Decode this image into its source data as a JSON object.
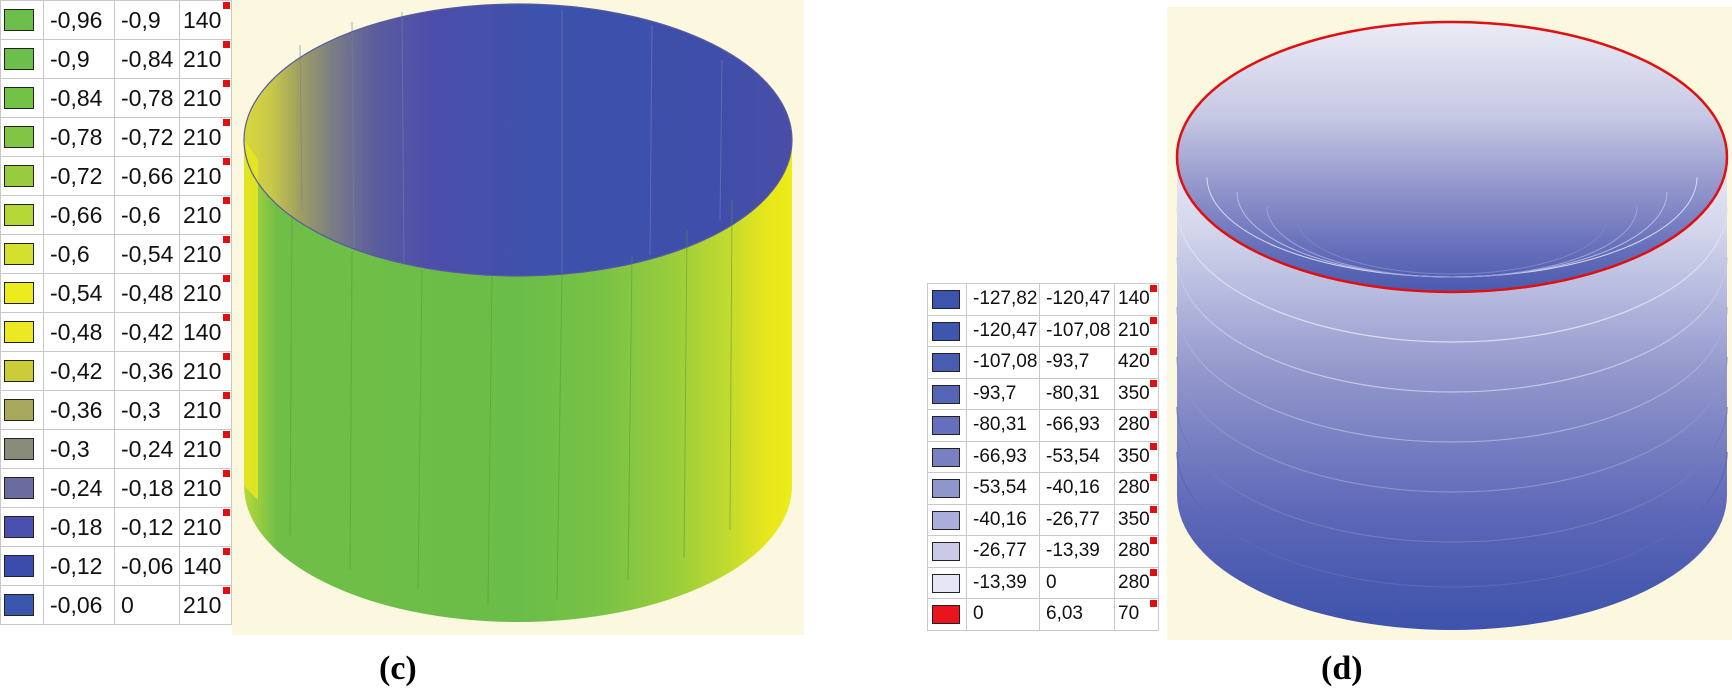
{
  "panel_c": {
    "caption": "(c)",
    "legend": [
      {
        "color": "#6cbf4a",
        "from": "-0,96",
        "to": "-0,9",
        "count": "140"
      },
      {
        "color": "#6cbf4a",
        "from": "-0,9",
        "to": "-0,84",
        "count": "210"
      },
      {
        "color": "#72c245",
        "from": "-0,84",
        "to": "-0,78",
        "count": "210"
      },
      {
        "color": "#80c644",
        "from": "-0,78",
        "to": "-0,72",
        "count": "210"
      },
      {
        "color": "#98cc3e",
        "from": "-0,72",
        "to": "-0,66",
        "count": "210"
      },
      {
        "color": "#b4d636",
        "from": "-0,66",
        "to": "-0,6",
        "count": "210"
      },
      {
        "color": "#d4e02e",
        "from": "-0,6",
        "to": "-0,54",
        "count": "210"
      },
      {
        "color": "#ecec1c",
        "from": "-0,54",
        "to": "-0,48",
        "count": "210"
      },
      {
        "color": "#ece822",
        "from": "-0,48",
        "to": "-0,42",
        "count": "140"
      },
      {
        "color": "#cccc38",
        "from": "-0,42",
        "to": "-0,36",
        "count": "210"
      },
      {
        "color": "#a8a85c",
        "from": "-0,36",
        "to": "-0,3",
        "count": "210"
      },
      {
        "color": "#888c78",
        "from": "-0,3",
        "to": "-0,24",
        "count": "210"
      },
      {
        "color": "#6a6ca0",
        "from": "-0,24",
        "to": "-0,18",
        "count": "210"
      },
      {
        "color": "#4a50b0",
        "from": "-0,18",
        "to": "-0,12",
        "count": "210"
      },
      {
        "color": "#3c4cae",
        "from": "-0,12",
        "to": "-0,06",
        "count": "140"
      },
      {
        "color": "#3a56ae",
        "from": "-0,06",
        "to": "0",
        "count": "210"
      }
    ]
  },
  "panel_d": {
    "caption": "(d)",
    "legend": [
      {
        "color": "#3c54ac",
        "from": "-127,82",
        "to": "-120,47",
        "count": "140"
      },
      {
        "color": "#3e56ae",
        "from": "-120,47",
        "to": "-107,08",
        "count": "210"
      },
      {
        "color": "#485cb2",
        "from": "-107,08",
        "to": "-93,7",
        "count": "420"
      },
      {
        "color": "#5664b6",
        "from": "-93,7",
        "to": "-80,31",
        "count": "350"
      },
      {
        "color": "#6470bc",
        "from": "-80,31",
        "to": "-66,93",
        "count": "280"
      },
      {
        "color": "#7880c2",
        "from": "-66,93",
        "to": "-53,54",
        "count": "350"
      },
      {
        "color": "#9096cc",
        "from": "-53,54",
        "to": "-40,16",
        "count": "280"
      },
      {
        "color": "#aaaed8",
        "from": "-40,16",
        "to": "-26,77",
        "count": "350"
      },
      {
        "color": "#c8cae6",
        "from": "-26,77",
        "to": "-13,39",
        "count": "280"
      },
      {
        "color": "#e6e6f4",
        "from": "-13,39",
        "to": "0",
        "count": "280"
      },
      {
        "color": "#e8161c",
        "from": "0",
        "to": "6,03",
        "count": "70"
      }
    ]
  }
}
